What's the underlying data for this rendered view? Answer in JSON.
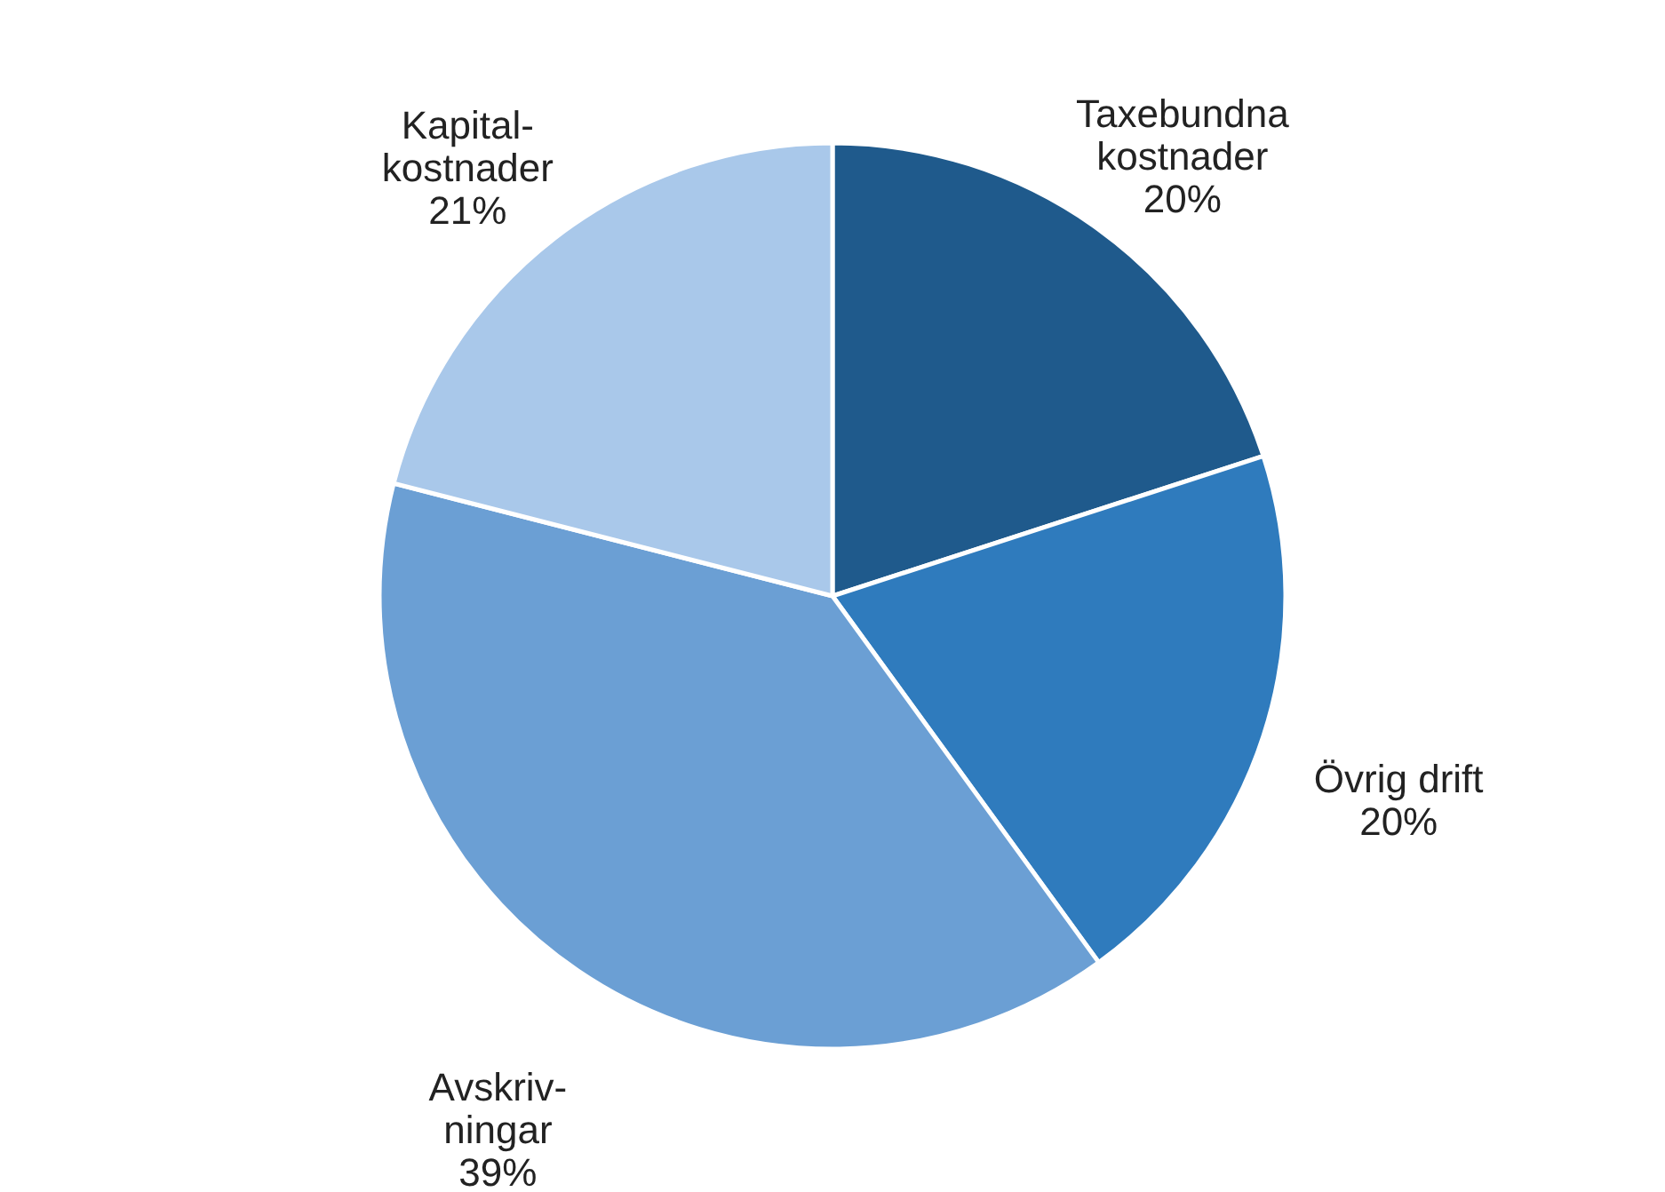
{
  "chart_data": {
    "type": "pie",
    "categories": [
      "Taxebundna\nkostnader",
      "Övrig drift",
      "Avskriv-\nningar",
      "Kapital-\nkostnader"
    ],
    "values": [
      20,
      20,
      39,
      21
    ],
    "value_labels": [
      "20%",
      "20%",
      "39%",
      "21%"
    ],
    "colors": [
      "#1f5a8c",
      "#2f7bbd",
      "#6b9fd4",
      "#a9c8ea"
    ]
  }
}
